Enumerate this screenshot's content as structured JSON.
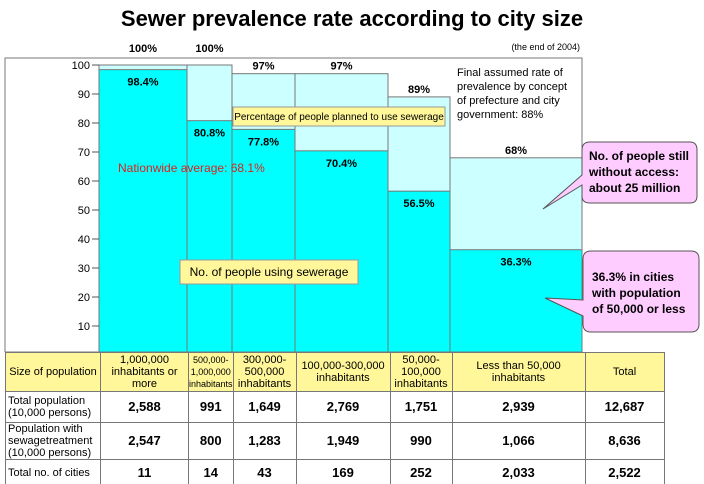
{
  "chart_data": {
    "type": "bar",
    "title": "Sewer prevalence rate according to city size",
    "subtitle": "(the end of 2004)",
    "ylim": [
      0,
      100
    ],
    "yticks": [
      10,
      20,
      30,
      40,
      50,
      60,
      70,
      80,
      90,
      100
    ],
    "categories": [
      "1,000,000 inhabitants or more",
      "500,000-1,000,000 inhabitants",
      "300,000-500,000 inhabitants",
      "100,000-300,000 inhabitants",
      "50,000-100,000 inhabitants",
      "Less than 50,000 inhabitants"
    ],
    "series": [
      {
        "name": "Percentage of people planned to use sewerage",
        "values": [
          100,
          100,
          97,
          97,
          89,
          68
        ],
        "labels": [
          "100%",
          "100%",
          "97%",
          "97%",
          "89%",
          "68%"
        ],
        "color": "#ccffff"
      },
      {
        "name": "No. of people using sewerage",
        "values": [
          98.4,
          80.8,
          77.8,
          70.4,
          56.5,
          36.3
        ],
        "labels": [
          "98.4%",
          "80.8%",
          "77.8%",
          "70.4%",
          "56.5%",
          "36.3%"
        ],
        "color": "#00ffff"
      }
    ],
    "annotations": {
      "nationwide": "Nationwide average: 68.1%",
      "final_rate": [
        "Final assumed rate of",
        "prevalence by concept",
        "of prefecture and city",
        "government: 88%"
      ],
      "callout1": [
        "No. of people still",
        "without access:",
        "about 25 million"
      ],
      "callout2": [
        "36.3% in cities",
        "with population",
        "of 50,000 or less"
      ]
    }
  },
  "table": {
    "header": [
      "Size of population",
      "1,000,000 inhabitants or more",
      "500,000-1,000,000 inhabitants",
      "300,000-500,000 inhabitants",
      "100,000-300,000 inhabitants",
      "50,000-100,000 inhabitants",
      "Less than 50,000 inhabitants",
      "Total"
    ],
    "rows": [
      {
        "label": "Total population (10,000 persons)",
        "values": [
          "2,588",
          "991",
          "1,649",
          "2,769",
          "1,751",
          "2,939",
          "12,687"
        ]
      },
      {
        "label": "Population with sewagetreatment (10,000 persons)",
        "values": [
          "2,547",
          "800",
          "1,283",
          "1,949",
          "990",
          "1,066",
          "8,636"
        ]
      },
      {
        "label": "Total no. of cities",
        "values": [
          "11",
          "14",
          "43",
          "169",
          "252",
          "2,033",
          "2,522"
        ]
      }
    ]
  }
}
